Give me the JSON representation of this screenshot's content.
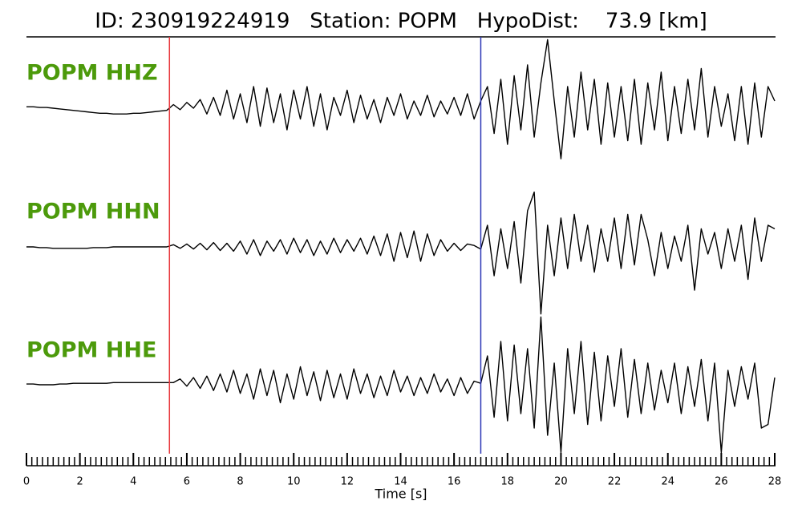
{
  "chart_data": {
    "type": "line",
    "title": "ID: 230919224919   Station: POPM   HypoDist:    73.9 [km]",
    "x_label": "Time [s]",
    "xlim": [
      0,
      28
    ],
    "xticks": [
      0,
      2,
      4,
      6,
      8,
      10,
      12,
      14,
      16,
      18,
      20,
      22,
      24,
      26,
      28
    ],
    "xminorticks": [
      0.2,
      0.4,
      0.6,
      0.8,
      1,
      1.2,
      1.4,
      1.6,
      1.8,
      2.2,
      2.4,
      2.6,
      2.8,
      3,
      3.2,
      3.4,
      3.6,
      3.8,
      4.2,
      4.4,
      4.6,
      4.8,
      5,
      5.2,
      5.4,
      5.6,
      5.8,
      6.2,
      6.4,
      6.6,
      6.8,
      7,
      7.2,
      7.4,
      7.6,
      7.8,
      8.2,
      8.4,
      8.6,
      8.8,
      9,
      9.2,
      9.4,
      9.6,
      9.8,
      10.2,
      10.4,
      10.6,
      10.8,
      11,
      11.2,
      11.4,
      11.6,
      11.8,
      12.2,
      12.4,
      12.6,
      12.8,
      13,
      13.2,
      13.4,
      13.6,
      13.8,
      14.2,
      14.4,
      14.6,
      14.8,
      15,
      15.2,
      15.4,
      15.6,
      15.8,
      16.2,
      16.4,
      16.6,
      16.8,
      17,
      17.2,
      17.4,
      17.6,
      17.8,
      18.2,
      18.4,
      18.6,
      18.8,
      19,
      19.2,
      19.4,
      19.6,
      19.8,
      20.2,
      20.4,
      20.6,
      20.8,
      21,
      21.2,
      21.4,
      21.6,
      21.8,
      22.2,
      22.4,
      22.6,
      22.8,
      23,
      23.2,
      23.4,
      23.6,
      23.8,
      24.2,
      24.4,
      24.6,
      24.8,
      25,
      25.2,
      25.4,
      25.6,
      25.8,
      26.2,
      26.4,
      26.6,
      26.8,
      27,
      27.2,
      27.4,
      27.6,
      27.8
    ],
    "picks": [
      {
        "x": 5.35,
        "color": "#e8383d"
      },
      {
        "x": 17.0,
        "color": "#2b35b5"
      }
    ],
    "x": [
      0,
      0.25,
      0.5,
      0.75,
      1,
      1.25,
      1.5,
      1.75,
      2,
      2.25,
      2.5,
      2.75,
      3,
      3.25,
      3.5,
      3.75,
      4,
      4.25,
      4.5,
      4.75,
      5,
      5.25,
      5.5,
      5.75,
      6,
      6.25,
      6.5,
      6.75,
      7,
      7.25,
      7.5,
      7.75,
      8,
      8.25,
      8.5,
      8.75,
      9,
      9.25,
      9.5,
      9.75,
      10,
      10.25,
      10.5,
      10.75,
      11,
      11.25,
      11.5,
      11.75,
      12,
      12.25,
      12.5,
      12.75,
      13,
      13.25,
      13.5,
      13.75,
      14,
      14.25,
      14.5,
      14.75,
      15,
      15.25,
      15.5,
      15.75,
      16,
      16.25,
      16.5,
      16.75,
      17,
      17.25,
      17.5,
      17.75,
      18,
      18.25,
      18.5,
      18.75,
      19,
      19.25,
      19.5,
      19.75,
      20,
      20.25,
      20.5,
      20.75,
      21,
      21.25,
      21.5,
      21.75,
      22,
      22.25,
      22.5,
      22.75,
      23,
      23.25,
      23.5,
      23.75,
      24,
      24.25,
      24.5,
      24.75,
      25,
      25.25,
      25.5,
      25.75,
      26,
      26.25,
      26.5,
      26.75,
      27,
      27.25,
      27.5,
      27.75,
      28
    ],
    "series": [
      {
        "name": "POPM HHZ",
        "color": "#000000",
        "values": [
          0.02,
          0.02,
          0.01,
          0.01,
          0.0,
          -0.01,
          -0.02,
          -0.03,
          -0.04,
          -0.05,
          -0.06,
          -0.07,
          -0.07,
          -0.08,
          -0.08,
          -0.08,
          -0.07,
          -0.07,
          -0.06,
          -0.05,
          -0.04,
          -0.03,
          0.05,
          -0.02,
          0.08,
          0.0,
          0.12,
          -0.08,
          0.15,
          -0.1,
          0.25,
          -0.15,
          0.2,
          -0.2,
          0.3,
          -0.25,
          0.28,
          -0.2,
          0.2,
          -0.3,
          0.25,
          -0.15,
          0.3,
          -0.25,
          0.2,
          -0.3,
          0.15,
          -0.1,
          0.25,
          -0.2,
          0.18,
          -0.15,
          0.12,
          -0.2,
          0.15,
          -0.1,
          0.2,
          -0.15,
          0.1,
          -0.1,
          0.18,
          -0.12,
          0.1,
          -0.08,
          0.15,
          -0.1,
          0.2,
          -0.15,
          0.1,
          0.3,
          -0.35,
          0.4,
          -0.5,
          0.45,
          -0.3,
          0.6,
          -0.4,
          0.35,
          0.95,
          0.1,
          -0.7,
          0.3,
          -0.4,
          0.5,
          -0.3,
          0.4,
          -0.5,
          0.35,
          -0.4,
          0.3,
          -0.45,
          0.4,
          -0.5,
          0.35,
          -0.3,
          0.5,
          -0.45,
          0.3,
          -0.35,
          0.4,
          -0.3,
          0.55,
          -0.4,
          0.3,
          -0.25,
          0.2,
          -0.45,
          0.3,
          -0.5,
          0.35,
          -0.4,
          0.3,
          0.1
        ]
      },
      {
        "name": "POPM HHN",
        "color": "#000000",
        "values": [
          0,
          0,
          -0.01,
          -0.01,
          -0.02,
          -0.02,
          -0.02,
          -0.02,
          -0.02,
          -0.02,
          -0.01,
          -0.01,
          -0.01,
          0,
          0,
          0,
          0,
          0,
          0,
          0,
          0,
          0,
          0.03,
          -0.02,
          0.04,
          -0.03,
          0.05,
          -0.04,
          0.06,
          -0.05,
          0.05,
          -0.06,
          0.08,
          -0.1,
          0.1,
          -0.12,
          0.08,
          -0.06,
          0.1,
          -0.1,
          0.12,
          -0.08,
          0.1,
          -0.12,
          0.08,
          -0.1,
          0.12,
          -0.08,
          0.1,
          -0.06,
          0.12,
          -0.1,
          0.15,
          -0.12,
          0.18,
          -0.2,
          0.2,
          -0.15,
          0.22,
          -0.2,
          0.18,
          -0.12,
          0.1,
          -0.06,
          0.05,
          -0.05,
          0.04,
          0.02,
          -0.03,
          0.3,
          -0.4,
          0.25,
          -0.3,
          0.35,
          -0.5,
          0.5,
          0.76,
          -0.93,
          0.3,
          -0.4,
          0.4,
          -0.3,
          0.45,
          -0.2,
          0.3,
          -0.35,
          0.25,
          -0.2,
          0.4,
          -0.3,
          0.45,
          -0.25,
          0.45,
          0.1,
          -0.4,
          0.2,
          -0.3,
          0.15,
          -0.2,
          0.3,
          -0.6,
          0.25,
          -0.1,
          0.2,
          -0.3,
          0.25,
          -0.2,
          0.3,
          -0.45,
          0.4,
          -0.2,
          0.3,
          0.25
        ]
      },
      {
        "name": "POPM HHE",
        "color": "#000000",
        "values": [
          0.01,
          0.01,
          0.0,
          0,
          0,
          0.01,
          0.01,
          0.02,
          0.02,
          0.02,
          0.02,
          0.02,
          0.02,
          0.03,
          0.03,
          0.03,
          0.03,
          0.03,
          0.03,
          0.03,
          0.03,
          0.03,
          0.03,
          0.08,
          -0.02,
          0.1,
          -0.05,
          0.12,
          -0.08,
          0.15,
          -0.1,
          0.2,
          -0.12,
          0.15,
          -0.2,
          0.22,
          -0.15,
          0.2,
          -0.25,
          0.15,
          -0.2,
          0.25,
          -0.15,
          0.18,
          -0.22,
          0.2,
          -0.18,
          0.15,
          -0.2,
          0.22,
          -0.12,
          0.15,
          -0.18,
          0.12,
          -0.15,
          0.2,
          -0.1,
          0.12,
          -0.15,
          0.1,
          -0.12,
          0.15,
          -0.1,
          0.08,
          -0.15,
          0.1,
          -0.12,
          0.05,
          0.02,
          0.4,
          -0.45,
          0.6,
          -0.5,
          0.55,
          -0.4,
          0.5,
          -0.6,
          0.94,
          -0.7,
          0.3,
          -0.94,
          0.5,
          -0.4,
          0.6,
          -0.55,
          0.45,
          -0.5,
          0.4,
          -0.3,
          0.5,
          -0.45,
          0.35,
          -0.4,
          0.3,
          -0.35,
          0.2,
          -0.25,
          0.3,
          -0.4,
          0.25,
          -0.3,
          0.35,
          -0.5,
          0.3,
          -0.94,
          0.2,
          -0.3,
          0.25,
          -0.2,
          0.3,
          -0.6,
          -0.55,
          0.1
        ]
      }
    ]
  }
}
